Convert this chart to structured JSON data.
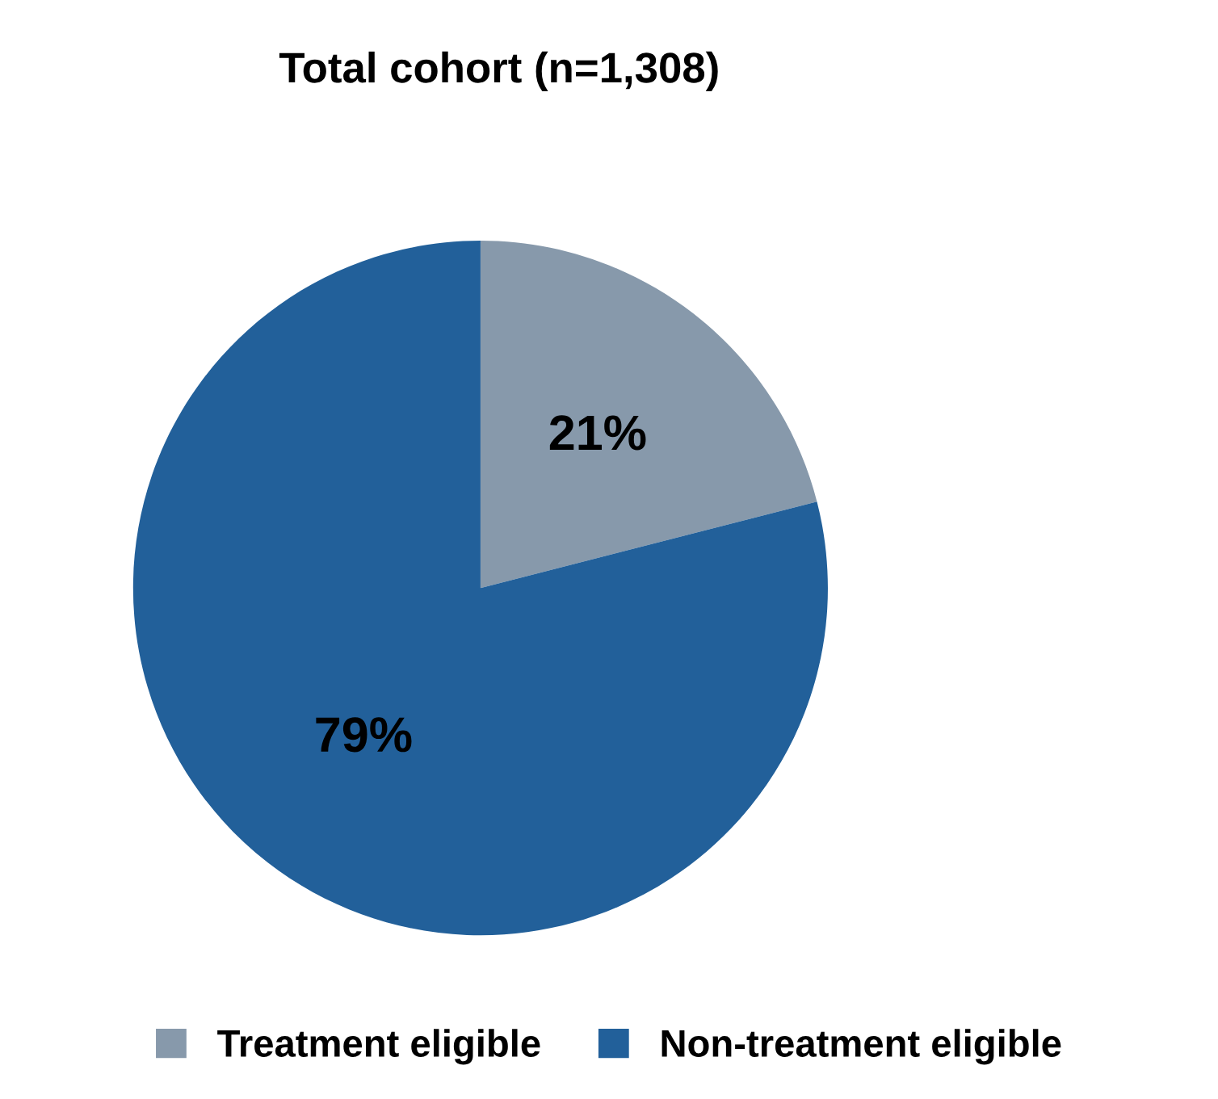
{
  "chart_data": {
    "type": "pie",
    "title": "Total cohort (n=1,308)",
    "categories": [
      "Treatment eligible",
      "Non-treatment eligible"
    ],
    "values": [
      21,
      79
    ],
    "colors": [
      "#8799ab",
      "#22609a"
    ],
    "value_labels": [
      "21%",
      "79%"
    ],
    "legend": "bottom"
  }
}
